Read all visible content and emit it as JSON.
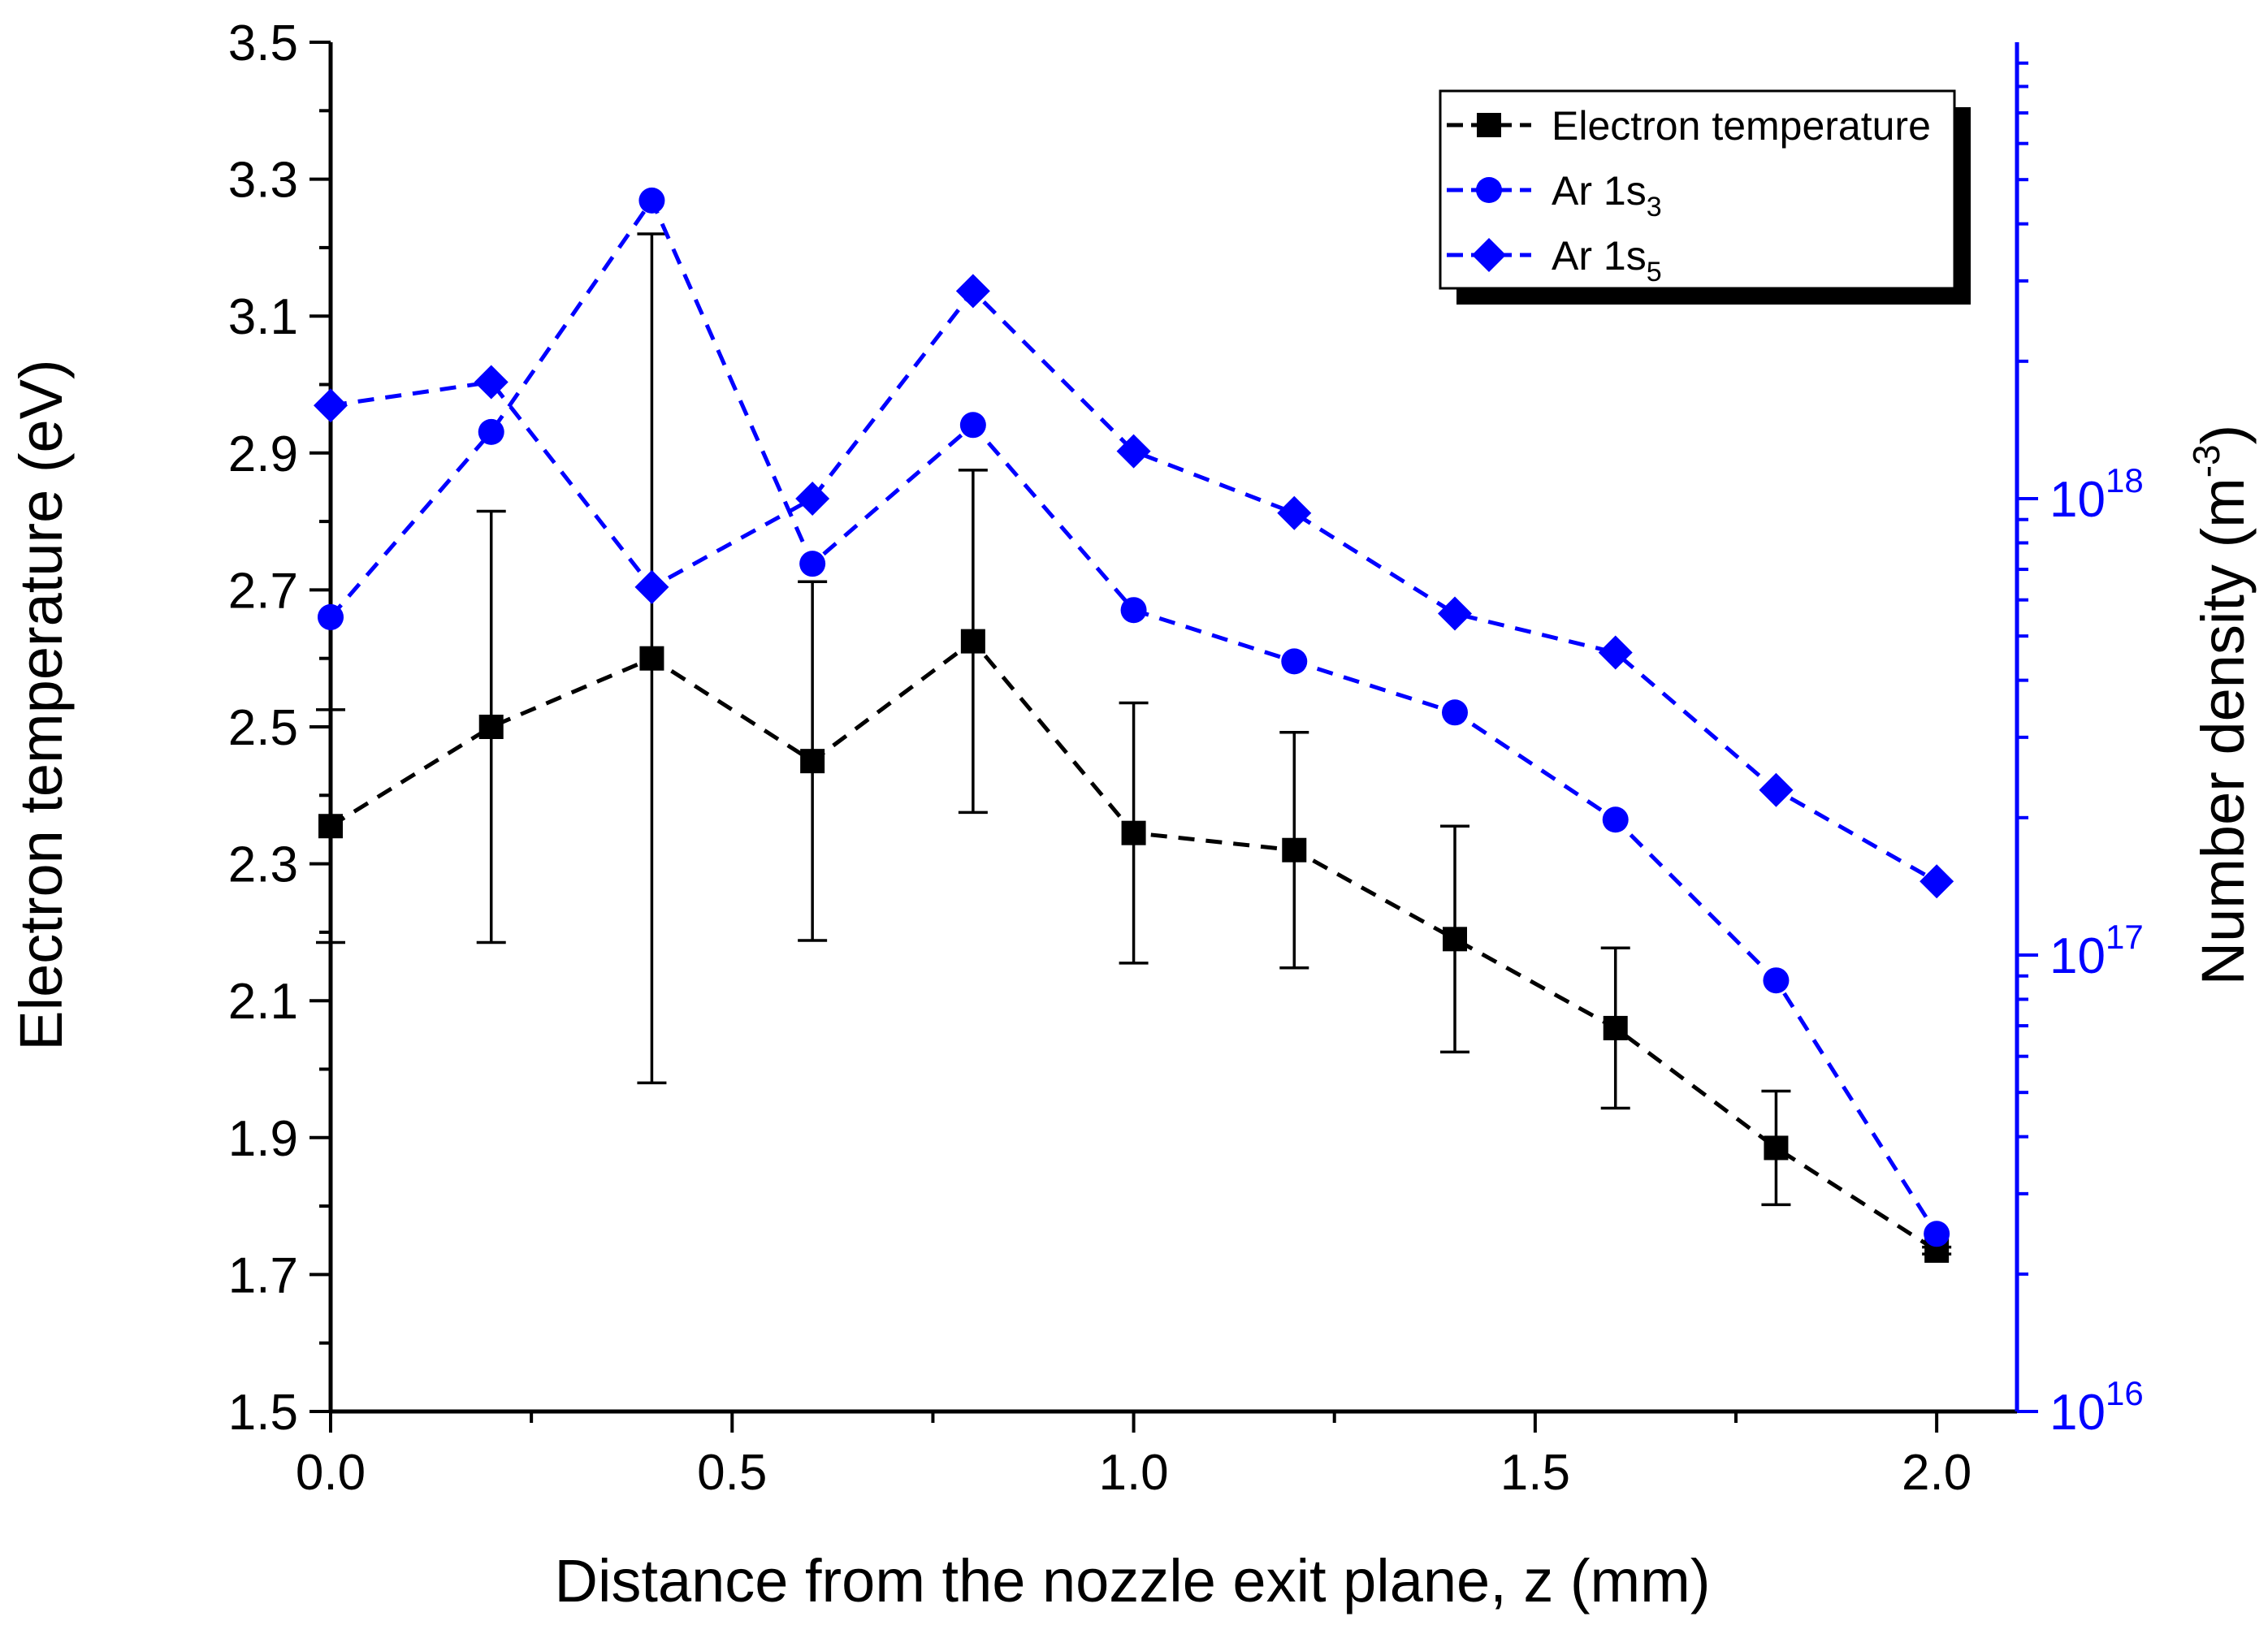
{
  "chart_data": {
    "type": "line",
    "x_axis": {
      "label": "Distance from the nozzle exit plane, z (mm)",
      "range": [
        0,
        2.1
      ],
      "ticks": [
        0.0,
        0.5,
        1.0,
        1.5,
        2.0
      ],
      "tick_labels": [
        "0.0",
        "0.5",
        "1.0",
        "1.5",
        "2.0"
      ]
    },
    "y_left": {
      "label": "Electron temperature (eV)",
      "range": [
        1.5,
        3.5
      ],
      "ticks": [
        1.5,
        1.7,
        1.9,
        2.1,
        2.3,
        2.5,
        2.7,
        2.9,
        3.1,
        3.3,
        3.5
      ],
      "tick_labels": [
        "1.5",
        "1.7",
        "1.9",
        "2.1",
        "2.3",
        "2.5",
        "2.7",
        "2.9",
        "3.1",
        "3.3",
        "3.5"
      ]
    },
    "y_right": {
      "label_main": "Number density (m",
      "label_sup": "-3",
      "label_end": ")",
      "scale": "log",
      "range": [
        1e+16,
        1e+19
      ],
      "major_ticks": [
        1e+16,
        1e+17,
        1e+18
      ],
      "tick_base": "10",
      "tick_exponents": [
        "16",
        "17",
        "18"
      ],
      "color": "#0000ff"
    },
    "x": [
      0.0,
      0.2,
      0.4,
      0.6,
      0.8,
      1.0,
      1.2,
      1.4,
      1.6,
      1.8,
      2.0
    ],
    "series": [
      {
        "name": "Electron temperature",
        "axis": "left",
        "color": "#000000",
        "marker": "square",
        "values": [
          2.355,
          2.5,
          2.6,
          2.45,
          2.625,
          2.345,
          2.32,
          2.19,
          2.06,
          1.885,
          1.735
        ],
        "error_bars": [
          0.17,
          0.315,
          0.62,
          0.262,
          0.25,
          0.19,
          0.172,
          0.165,
          0.117,
          0.083,
          0.005
        ]
      },
      {
        "name": "Ar 1s",
        "subscript": "3",
        "axis": "right",
        "color": "#0000ff",
        "marker": "circle",
        "values": [
          5.5e+17,
          1.4e+18,
          4.5e+18,
          7.2e+17,
          1.45e+18,
          5.7e+17,
          4.4e+17,
          3.4e+17,
          1.98e+17,
          8.8e+16,
          2.45e+16
        ]
      },
      {
        "name": "Ar 1s",
        "subscript": "5",
        "axis": "right",
        "color": "#0000ff",
        "marker": "diamond",
        "values": [
          1.6e+18,
          1.8e+18,
          6.4e+17,
          1e+18,
          2.85e+18,
          1.27e+18,
          9.3e+17,
          5.6e+17,
          4.6e+17,
          2.3e+17,
          1.45e+17
        ]
      }
    ],
    "legend": {
      "position": "top-right",
      "entries": [
        {
          "label": "Electron temperature",
          "sub": ""
        },
        {
          "label": "Ar 1s",
          "sub": "3"
        },
        {
          "label": "Ar 1s",
          "sub": "5"
        }
      ]
    }
  }
}
